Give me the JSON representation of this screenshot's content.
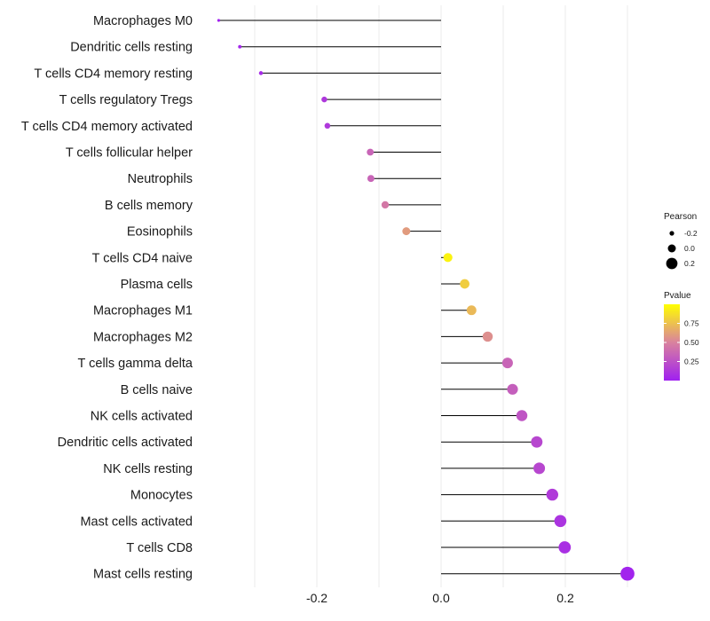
{
  "chart_data": {
    "type": "lollipop",
    "title": "",
    "xlabel": "",
    "ylabel": "",
    "xlim": [
      -0.36,
      0.31
    ],
    "x_ticks": [
      -0.2,
      0.0,
      0.2
    ],
    "x_tick_labels": [
      "-0.2",
      "0.0",
      "0.2"
    ],
    "categories": [
      "Macrophages M0",
      "Dendritic cells resting",
      "T cells CD4 memory resting",
      "T cells regulatory  Tregs",
      "T cells CD4 memory activated",
      "T cells follicular helper",
      "Neutrophils",
      "B cells memory",
      "Eosinophils",
      "T cells CD4 naive",
      "Plasma cells",
      "Macrophages M1",
      "Macrophages M2",
      "T cells gamma delta",
      "B cells naive",
      "NK cells activated",
      "Dendritic cells activated",
      "NK cells resting",
      "Monocytes",
      "Mast cells activated",
      "T cells CD8",
      "Mast cells resting"
    ],
    "values": [
      -0.358,
      -0.324,
      -0.29,
      -0.188,
      -0.183,
      -0.114,
      -0.113,
      -0.09,
      -0.056,
      0.011,
      0.038,
      0.049,
      0.075,
      0.107,
      0.115,
      0.13,
      0.154,
      0.158,
      0.179,
      0.192,
      0.199,
      0.3
    ],
    "pvalues": [
      0.01,
      0.03,
      0.05,
      0.12,
      0.13,
      0.35,
      0.35,
      0.45,
      0.6,
      0.95,
      0.8,
      0.72,
      0.55,
      0.35,
      0.32,
      0.27,
      0.2,
      0.2,
      0.14,
      0.1,
      0.08,
      0.02
    ],
    "size_legend": {
      "title": "Pearson",
      "labels": [
        "-0.2",
        "0.0",
        "0.2"
      ],
      "values": [
        -0.2,
        0.0,
        0.2
      ]
    },
    "color_legend": {
      "title": "Pvalue",
      "labels": [
        "0.75",
        "0.50",
        "0.25"
      ],
      "values": [
        0.75,
        0.5,
        0.25
      ],
      "range": [
        0.0,
        1.0
      ],
      "low_color": "#a020f0",
      "mid_color": "#d9829e",
      "high_color": "#ffff00"
    },
    "legend_position": "right"
  }
}
